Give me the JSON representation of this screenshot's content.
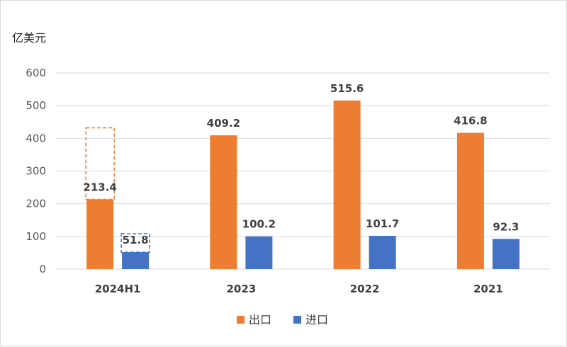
{
  "chart_data": {
    "type": "bar",
    "ylabel": "亿美元",
    "categories": [
      "2024H1",
      "2023",
      "2022",
      "2021"
    ],
    "series": [
      {
        "name": "出口",
        "values": [
          213.4,
          409.2,
          515.6,
          416.8
        ],
        "color": "#ed7d31"
      },
      {
        "name": "进口",
        "values": [
          51.8,
          100.2,
          101.7,
          92.3
        ],
        "color": "#4472c4"
      }
    ],
    "ylim": [
      0,
      600
    ],
    "yticks": [
      0,
      100,
      200,
      300,
      400,
      500,
      600
    ],
    "grid": true,
    "legend": "bottom",
    "projection_outlines": [
      {
        "category": "2024H1",
        "series": "出口",
        "value": 432
      },
      {
        "category": "2024H1",
        "series": "进口",
        "value": 108
      }
    ]
  }
}
